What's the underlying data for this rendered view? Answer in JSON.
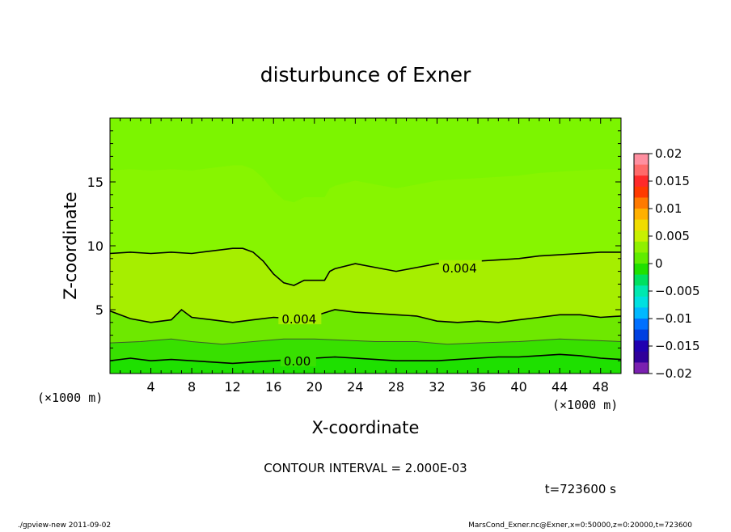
{
  "chart_data": {
    "type": "heatmap",
    "title": "disturbunce of Exner",
    "xlabel": "X-coordinate",
    "ylabel": "Z-coordinate",
    "x_unit": "(×1000 m)",
    "x_unit_right": "(×1000 m)",
    "xlim": [
      0,
      50
    ],
    "ylim": [
      0,
      20
    ],
    "x_ticks": [
      4,
      8,
      12,
      16,
      20,
      24,
      28,
      32,
      36,
      40,
      44,
      48
    ],
    "y_ticks": [
      5,
      10,
      15
    ],
    "contour_interval_text": "CONTOUR INTERVAL = 2.000E-03",
    "time_text": "t=723600 s",
    "contours": [
      {
        "level": 0.004,
        "points": [
          [
            0,
            9.4
          ],
          [
            2,
            9.5
          ],
          [
            4,
            9.4
          ],
          [
            6,
            9.5
          ],
          [
            8,
            9.4
          ],
          [
            10,
            9.6
          ],
          [
            12,
            9.8
          ],
          [
            13,
            9.8
          ],
          [
            14,
            9.5
          ],
          [
            15,
            8.8
          ],
          [
            16,
            7.8
          ],
          [
            17,
            7.1
          ],
          [
            18,
            6.9
          ],
          [
            19,
            7.3
          ],
          [
            21,
            7.3
          ],
          [
            21.5,
            8.0
          ],
          [
            22,
            8.2
          ],
          [
            24,
            8.6
          ],
          [
            26,
            8.3
          ],
          [
            28,
            8.0
          ],
          [
            30,
            8.3
          ],
          [
            32,
            8.6
          ],
          [
            34,
            8.7
          ],
          [
            36,
            8.8
          ],
          [
            38,
            8.9
          ],
          [
            40,
            9.0
          ],
          [
            42,
            9.2
          ],
          [
            44,
            9.3
          ],
          [
            46,
            9.4
          ],
          [
            48,
            9.5
          ],
          [
            50,
            9.5
          ]
        ],
        "label": "0.004",
        "label_x": 32.5,
        "label_y": 8.3
      },
      {
        "level": 0.004,
        "points": [
          [
            0,
            4.9
          ],
          [
            2,
            4.3
          ],
          [
            4,
            4.0
          ],
          [
            6,
            4.2
          ],
          [
            7,
            5.0
          ],
          [
            8,
            4.4
          ],
          [
            10,
            4.2
          ],
          [
            12,
            4.0
          ],
          [
            14,
            4.2
          ],
          [
            16,
            4.4
          ],
          [
            18,
            4.3
          ],
          [
            20,
            4.5
          ],
          [
            22,
            5.0
          ],
          [
            24,
            4.8
          ],
          [
            26,
            4.7
          ],
          [
            28,
            4.6
          ],
          [
            30,
            4.5
          ],
          [
            32,
            4.1
          ],
          [
            34,
            4.0
          ],
          [
            36,
            4.1
          ],
          [
            38,
            4.0
          ],
          [
            40,
            4.2
          ],
          [
            42,
            4.4
          ],
          [
            44,
            4.6
          ],
          [
            46,
            4.6
          ],
          [
            48,
            4.4
          ],
          [
            50,
            4.5
          ]
        ],
        "label": "0.004",
        "label_x": 16.8,
        "label_y": 4.3
      },
      {
        "level": 0.0,
        "points": [
          [
            0,
            1.0
          ],
          [
            2,
            1.2
          ],
          [
            4,
            1.0
          ],
          [
            6,
            1.1
          ],
          [
            8,
            1.0
          ],
          [
            10,
            0.9
          ],
          [
            12,
            0.8
          ],
          [
            14,
            0.9
          ],
          [
            16,
            1.0
          ],
          [
            18,
            1.1
          ],
          [
            20,
            1.2
          ],
          [
            22,
            1.3
          ],
          [
            24,
            1.2
          ],
          [
            26,
            1.1
          ],
          [
            28,
            1.0
          ],
          [
            30,
            1.0
          ],
          [
            32,
            1.0
          ],
          [
            34,
            1.1
          ],
          [
            36,
            1.2
          ],
          [
            38,
            1.3
          ],
          [
            40,
            1.3
          ],
          [
            42,
            1.4
          ],
          [
            44,
            1.5
          ],
          [
            46,
            1.4
          ],
          [
            48,
            1.2
          ],
          [
            50,
            1.1
          ]
        ],
        "label": "0.00",
        "label_x": 17.0,
        "label_y": 1.0
      },
      {
        "level": 0.002,
        "points": [
          [
            0,
            2.4
          ],
          [
            3,
            2.5
          ],
          [
            6,
            2.7
          ],
          [
            8,
            2.5
          ],
          [
            11,
            2.3
          ],
          [
            14,
            2.5
          ],
          [
            17,
            2.7
          ],
          [
            20,
            2.7
          ],
          [
            23,
            2.6
          ],
          [
            26,
            2.5
          ],
          [
            30,
            2.5
          ],
          [
            33,
            2.3
          ],
          [
            36,
            2.4
          ],
          [
            40,
            2.5
          ],
          [
            44,
            2.7
          ],
          [
            47,
            2.6
          ],
          [
            50,
            2.5
          ]
        ]
      }
    ],
    "colorbar": {
      "ticks": [
        "0.02",
        "0.015",
        "0.01",
        "0.005",
        "0",
        "−0.005",
        "−0.01",
        "−0.015",
        "−0.02"
      ],
      "colors": [
        "#ff8fa0",
        "#ff6a6a",
        "#ff2a2a",
        "#ff3a00",
        "#ff7a00",
        "#ffb000",
        "#f0dc00",
        "#c8f000",
        "#90f000",
        "#60ec00",
        "#20e000",
        "#00e060",
        "#00e8b0",
        "#00e0e0",
        "#00b8ff",
        "#0070ff",
        "#0040e0",
        "#2000b0",
        "#30009a",
        "#7a20b0"
      ]
    }
  },
  "footer": {
    "left": "./gpview-new   2011-09-02",
    "right": "MarsCond_Exner.nc@Exner,x=0:50000,z=0:20000,t=723600"
  }
}
